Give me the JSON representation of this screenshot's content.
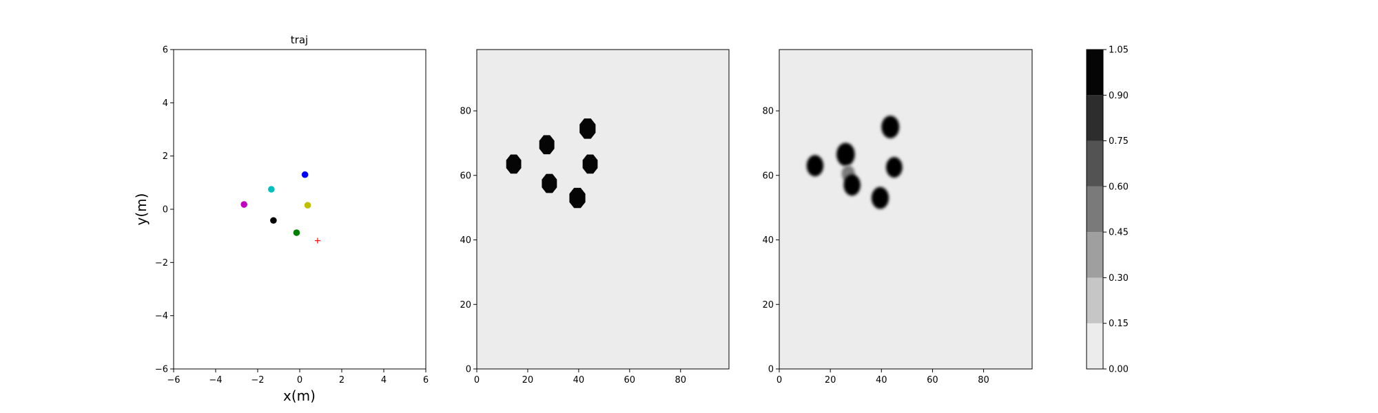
{
  "chart_data": [
    {
      "type": "scatter",
      "title": "traj",
      "xlabel": "x(m)",
      "ylabel": "y(m)",
      "xlim": [
        -6,
        6
      ],
      "ylim": [
        -6,
        6
      ],
      "xticks": [
        -6,
        -4,
        -2,
        0,
        2,
        4,
        6
      ],
      "yticks": [
        -6,
        -4,
        -2,
        0,
        2,
        4,
        6
      ],
      "grid": false,
      "points": [
        {
          "x": 0.25,
          "y": 1.3,
          "color": "#0000ff",
          "marker": "circle"
        },
        {
          "x": -1.35,
          "y": 0.75,
          "color": "#00bfbf",
          "marker": "circle"
        },
        {
          "x": -2.65,
          "y": 0.18,
          "color": "#bf00bf",
          "marker": "circle"
        },
        {
          "x": 0.38,
          "y": 0.15,
          "color": "#bfbf00",
          "marker": "circle"
        },
        {
          "x": -1.25,
          "y": -0.42,
          "color": "#000000",
          "marker": "circle"
        },
        {
          "x": -0.15,
          "y": -0.88,
          "color": "#008000",
          "marker": "circle"
        },
        {
          "x": 0.85,
          "y": -1.18,
          "color": "#ff0000",
          "marker": "plus"
        }
      ]
    },
    {
      "type": "heatmap",
      "xlim": [
        0,
        99
      ],
      "ylim": [
        0,
        99
      ],
      "xticks": [
        0,
        20,
        40,
        60,
        80
      ],
      "yticks": [
        0,
        20,
        40,
        60,
        80
      ],
      "background_value": 0.0,
      "blobs": [
        {
          "cx": 14.5,
          "cy": 63.5,
          "r": 3.2,
          "value": 1.0,
          "shape": "octagon"
        },
        {
          "cx": 27.5,
          "cy": 69.5,
          "r": 3.2,
          "value": 1.0,
          "shape": "octagon"
        },
        {
          "cx": 28.5,
          "cy": 57.5,
          "r": 3.2,
          "value": 1.0,
          "shape": "octagon"
        },
        {
          "cx": 43.5,
          "cy": 74.5,
          "r": 3.4,
          "value": 1.0,
          "shape": "octagon"
        },
        {
          "cx": 44.5,
          "cy": 63.5,
          "r": 3.2,
          "value": 1.0,
          "shape": "octagon"
        },
        {
          "cx": 39.5,
          "cy": 53.0,
          "r": 3.4,
          "value": 1.0,
          "shape": "octagon"
        }
      ]
    },
    {
      "type": "heatmap",
      "xlim": [
        0,
        99
      ],
      "ylim": [
        0,
        99
      ],
      "xticks": [
        0,
        20,
        40,
        60,
        80
      ],
      "yticks": [
        0,
        20,
        40,
        60,
        80
      ],
      "background_value": 0.0,
      "blobs": [
        {
          "cx": 14.0,
          "cy": 63.0,
          "r": 3.3,
          "value": 1.0,
          "shape": "blur"
        },
        {
          "cx": 26.0,
          "cy": 66.5,
          "r": 3.6,
          "value": 1.0,
          "shape": "blur"
        },
        {
          "cx": 27.0,
          "cy": 60.5,
          "r": 2.6,
          "value": 0.5,
          "shape": "blur"
        },
        {
          "cx": 28.5,
          "cy": 57.0,
          "r": 3.3,
          "value": 1.0,
          "shape": "blur"
        },
        {
          "cx": 43.5,
          "cy": 75.0,
          "r": 3.5,
          "value": 1.0,
          "shape": "blur"
        },
        {
          "cx": 45.0,
          "cy": 62.5,
          "r": 3.2,
          "value": 1.0,
          "shape": "blur"
        },
        {
          "cx": 39.5,
          "cy": 53.0,
          "r": 3.4,
          "value": 1.0,
          "shape": "blur"
        }
      ]
    }
  ],
  "colorbar": {
    "levels": [
      0.0,
      0.15,
      0.3,
      0.45,
      0.6,
      0.75,
      0.9,
      1.05
    ],
    "tick_labels": [
      "0.00",
      "0.15",
      "0.30",
      "0.45",
      "0.60",
      "0.75",
      "0.90",
      "1.05"
    ],
    "colors": [
      "#ececec",
      "#c6c6c6",
      "#9f9f9f",
      "#7a7a7a",
      "#535353",
      "#2d2d2d",
      "#050505"
    ]
  }
}
